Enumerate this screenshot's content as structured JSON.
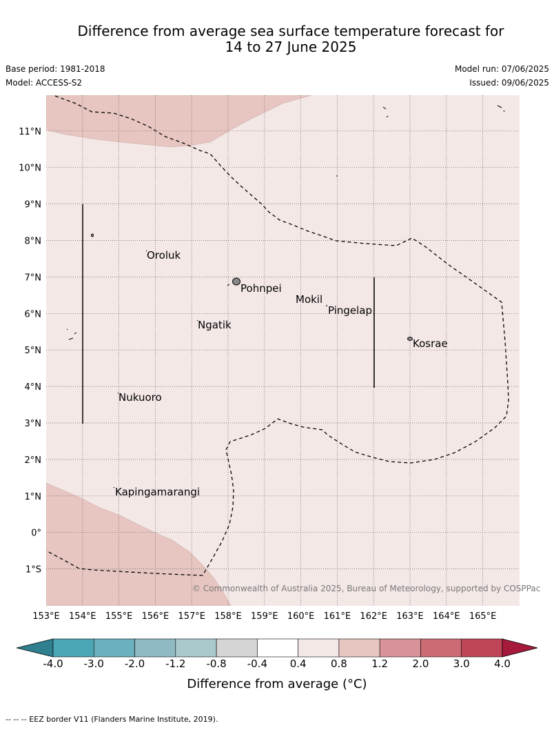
{
  "header": {
    "title_line1": "Difference from average sea surface temperature forecast for",
    "title_line2": "14 to 27 June 2025",
    "base_period": "Base period: 1981-2018",
    "model": "Model: ACCESS-S2",
    "model_run": "Model run: 07/06/2025",
    "issued": "Issued: 09/06/2025"
  },
  "map": {
    "lat_labels": [
      "11°N",
      "10°N",
      "9°N",
      "8°N",
      "7°N",
      "6°N",
      "5°N",
      "4°N",
      "3°N",
      "2°N",
      "1°N",
      "0°",
      "1°S"
    ],
    "lon_labels": [
      "153°E",
      "154°E",
      "155°E",
      "156°E",
      "157°E",
      "158°E",
      "159°E",
      "160°E",
      "161°E",
      "162°E",
      "163°E",
      "164°E",
      "165°E"
    ],
    "places": [
      {
        "name": "Oroluk"
      },
      {
        "name": "Pohnpei"
      },
      {
        "name": "Mokil"
      },
      {
        "name": "Pingelap"
      },
      {
        "name": "Ngatik"
      },
      {
        "name": "Kosrae"
      },
      {
        "name": "Nukuoro"
      },
      {
        "name": "Kapingamarangi"
      }
    ],
    "copyright": "© Commonwealth of Australia 2025, Bureau of Meteorology, supported by COSPPac",
    "colors": {
      "background": "#f4e8e7",
      "warm_band": "#e7c6c1",
      "grid": "#555555"
    }
  },
  "colorbar": {
    "ticks": [
      "-4.0",
      "-3.0",
      "-2.0",
      "-1.2",
      "-0.8",
      "-0.4",
      "0.4",
      "0.8",
      "1.2",
      "2.0",
      "3.0",
      "4.0"
    ],
    "colors": [
      "#2f7f8f",
      "#4aa5b5",
      "#6ab0bf",
      "#8fbac4",
      "#a9c9cc",
      "#d5d5d5",
      "#ffffff",
      "#f4e8e7",
      "#e7c6c1",
      "#d8929a",
      "#cc6b74",
      "#bf4657",
      "#a61a3c"
    ],
    "label": "Difference from average (°C)"
  },
  "footer": "--  --  -- EEZ border V11 (Flanders Marine Institute, 2019)."
}
